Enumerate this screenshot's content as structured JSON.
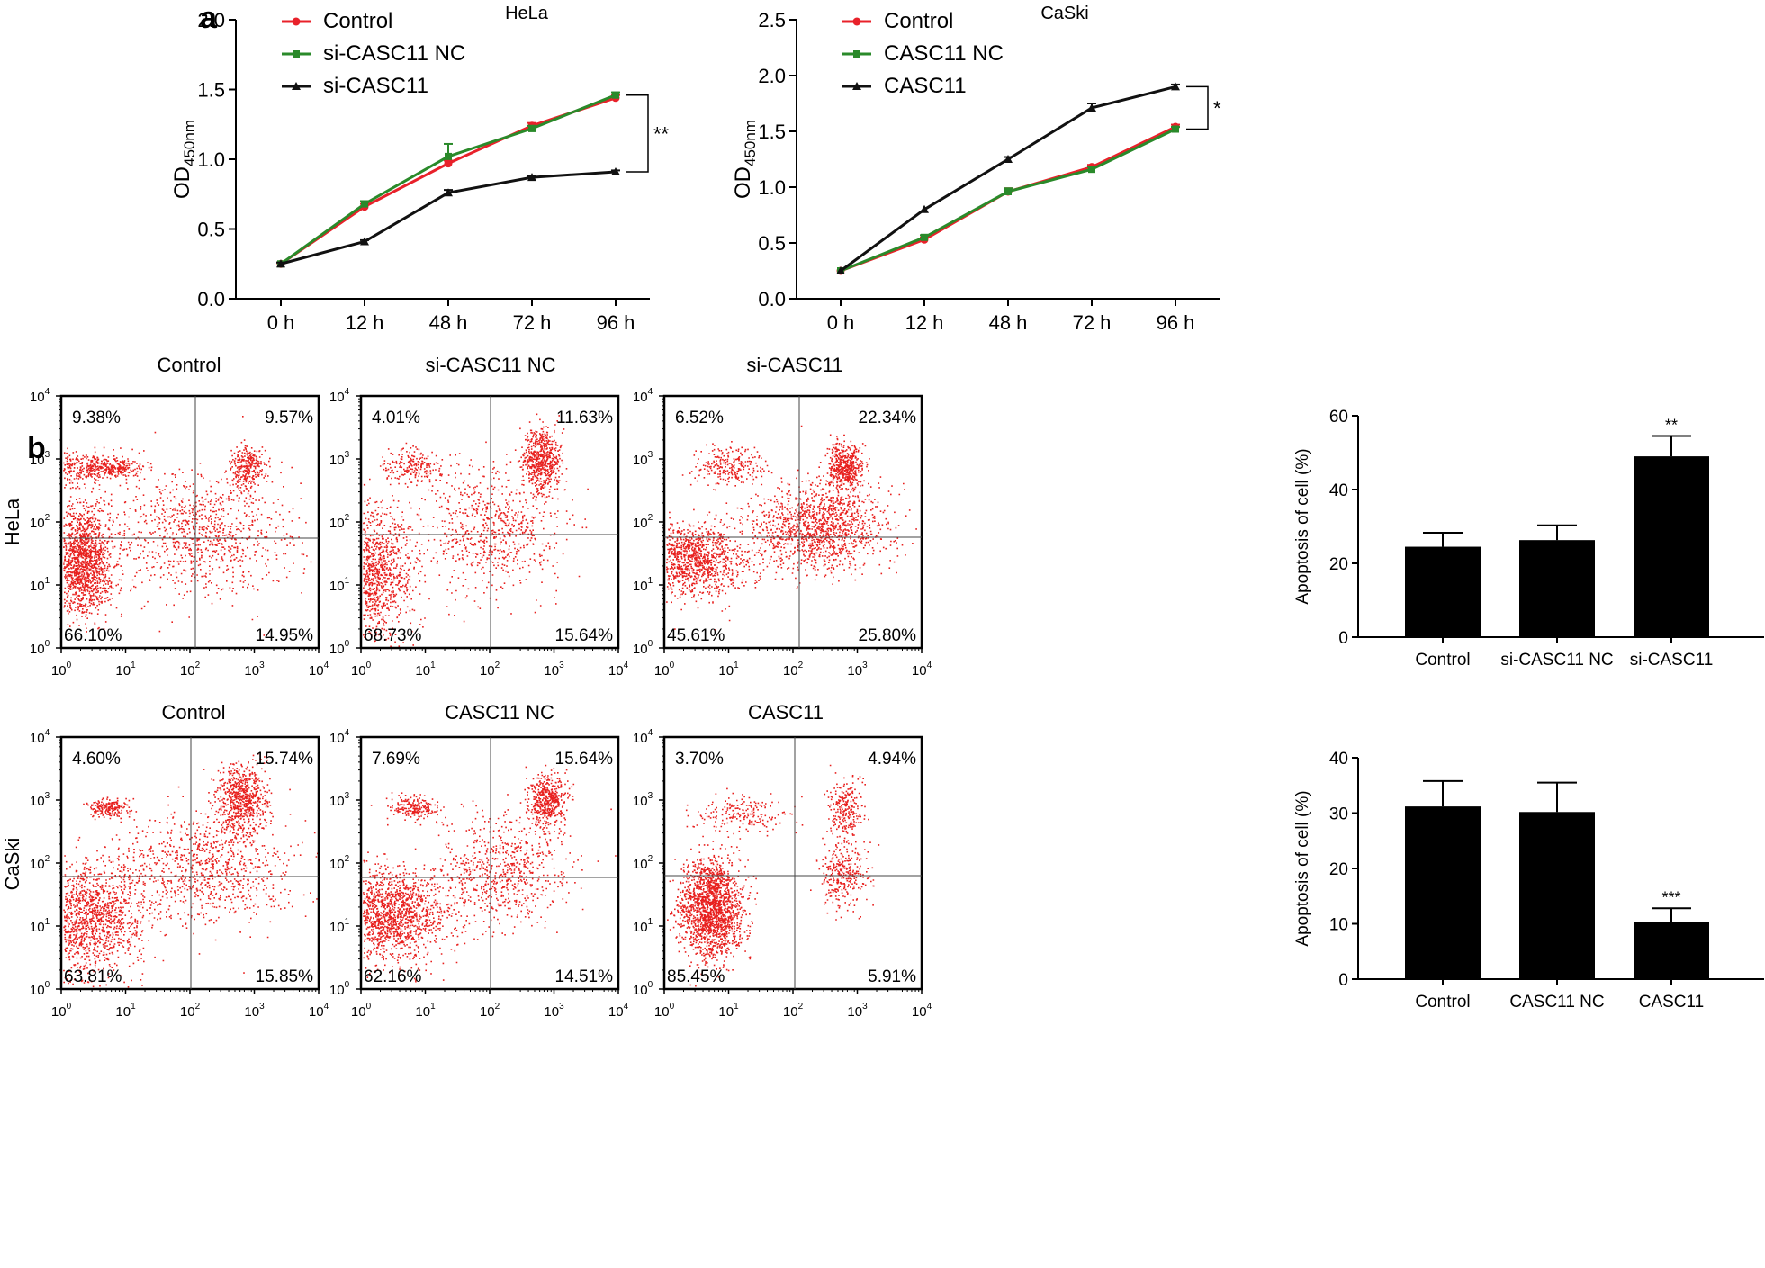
{
  "panels": {
    "a": "a",
    "b": "b"
  },
  "chart_data": [
    {
      "type": "line",
      "title": "HeLa",
      "xlabel": "",
      "ylabel": "OD450nm",
      "ylabel_main": "OD",
      "ylabel_sub": "450nm",
      "categories": [
        "0 h",
        "12 h",
        "48 h",
        "72 h",
        "96 h"
      ],
      "ylim": [
        0,
        2.0
      ],
      "yticks": [
        "0.0",
        "0.5",
        "1.0",
        "1.5",
        "2.0"
      ],
      "ytick_values": [
        0,
        0.5,
        1.0,
        1.5,
        2.0
      ],
      "series": [
        {
          "name": "Control",
          "color": "#e8212a",
          "marker": "circle",
          "values": [
            0.25,
            0.66,
            0.97,
            1.24,
            1.44
          ],
          "errors": [
            0.01,
            0.02,
            0.02,
            0.02,
            0.02
          ]
        },
        {
          "name": "si-CASC11 NC",
          "color": "#2a8a2a",
          "marker": "square",
          "values": [
            0.25,
            0.68,
            1.02,
            1.22,
            1.46
          ],
          "errors": [
            0.01,
            0.02,
            0.09,
            0.02,
            0.02
          ]
        },
        {
          "name": "si-CASC11",
          "color": "#111111",
          "marker": "triangle",
          "values": [
            0.25,
            0.41,
            0.76,
            0.87,
            0.91
          ],
          "errors": [
            0.01,
            0.01,
            0.02,
            0.01,
            0.01
          ]
        }
      ],
      "significance": "**"
    },
    {
      "type": "line",
      "title": "CaSki",
      "xlabel": "",
      "ylabel": "OD450nm",
      "ylabel_main": "OD",
      "ylabel_sub": "450nm",
      "categories": [
        "0 h",
        "12 h",
        "48 h",
        "72 h",
        "96 h"
      ],
      "ylim": [
        0,
        2.5
      ],
      "yticks": [
        "0.0",
        "0.5",
        "1.0",
        "1.5",
        "2.0",
        "2.5"
      ],
      "ytick_values": [
        0,
        0.5,
        1.0,
        1.5,
        2.0,
        2.5
      ],
      "series": [
        {
          "name": "Control",
          "color": "#e8212a",
          "marker": "circle",
          "values": [
            0.25,
            0.53,
            0.96,
            1.18,
            1.54
          ],
          "errors": [
            0.01,
            0.02,
            0.03,
            0.02,
            0.02
          ]
        },
        {
          "name": "CASC11 NC",
          "color": "#2a8a2a",
          "marker": "square",
          "values": [
            0.25,
            0.55,
            0.96,
            1.16,
            1.52
          ],
          "errors": [
            0.01,
            0.02,
            0.03,
            0.02,
            0.02
          ]
        },
        {
          "name": "CASC11",
          "color": "#111111",
          "marker": "triangle",
          "values": [
            0.25,
            0.8,
            1.25,
            1.71,
            1.9
          ],
          "errors": [
            0.01,
            0.01,
            0.02,
            0.04,
            0.02
          ]
        }
      ],
      "significance": "*"
    },
    {
      "type": "scatter",
      "subtype": "flow-cytometry-quadrants",
      "row_labels": [
        "HeLa",
        "CaSki"
      ],
      "axis_ticks": [
        "10",
        "10",
        "10",
        "10",
        "10"
      ],
      "axis_exponents": [
        "0",
        "1",
        "2",
        "3",
        "4"
      ],
      "plots": [
        {
          "title": "Control",
          "quadrants": {
            "ul": "9.38%",
            "ur": "9.57%",
            "ll": "66.10%",
            "lr": "14.95%"
          }
        },
        {
          "title": "si-CASC11 NC",
          "quadrants": {
            "ul": "4.01%",
            "ur": "11.63%",
            "ll": "68.73%",
            "lr": "15.64%"
          }
        },
        {
          "title": "si-CASC11",
          "quadrants": {
            "ul": "6.52%",
            "ur": "22.34%",
            "ll": "45.61%",
            "lr": "25.80%"
          }
        },
        {
          "title": "Control",
          "quadrants": {
            "ul": "4.60%",
            "ur": "15.74%",
            "ll": "63.81%",
            "lr": "15.85%"
          }
        },
        {
          "title": "CASC11 NC",
          "quadrants": {
            "ul": "7.69%",
            "ur": "15.64%",
            "ll": "62.16%",
            "lr": "14.51%"
          }
        },
        {
          "title": "CASC11",
          "quadrants": {
            "ul": "3.70%",
            "ur": "4.94%",
            "ll": "85.45%",
            "lr": "5.91%"
          }
        }
      ]
    },
    {
      "type": "bar",
      "title": "",
      "xlabel": "",
      "ylabel": "Apoptosis of cell (%)",
      "categories": [
        "Control",
        "si-CASC11 NC",
        "si-CASC11"
      ],
      "values": [
        24.5,
        26.3,
        49.0
      ],
      "errors": [
        3.8,
        4.0,
        5.5
      ],
      "ylim": [
        0,
        60
      ],
      "yticks": [
        "0",
        "20",
        "40",
        "60"
      ],
      "ytick_values": [
        0,
        20,
        40,
        60
      ],
      "annotations": [
        "",
        "",
        "**"
      ],
      "bar_color": "#000000"
    },
    {
      "type": "bar",
      "title": "",
      "xlabel": "",
      "ylabel": "Apoptosis of cell (%)",
      "categories": [
        "Control",
        "CASC11 NC",
        "CASC11"
      ],
      "values": [
        31.2,
        30.2,
        10.3
      ],
      "errors": [
        4.6,
        5.3,
        2.5
      ],
      "ylim": [
        0,
        40
      ],
      "yticks": [
        "0",
        "10",
        "20",
        "30",
        "40"
      ],
      "ytick_values": [
        0,
        10,
        20,
        30,
        40
      ],
      "annotations": [
        "",
        "",
        "***"
      ],
      "bar_color": "#000000"
    }
  ]
}
